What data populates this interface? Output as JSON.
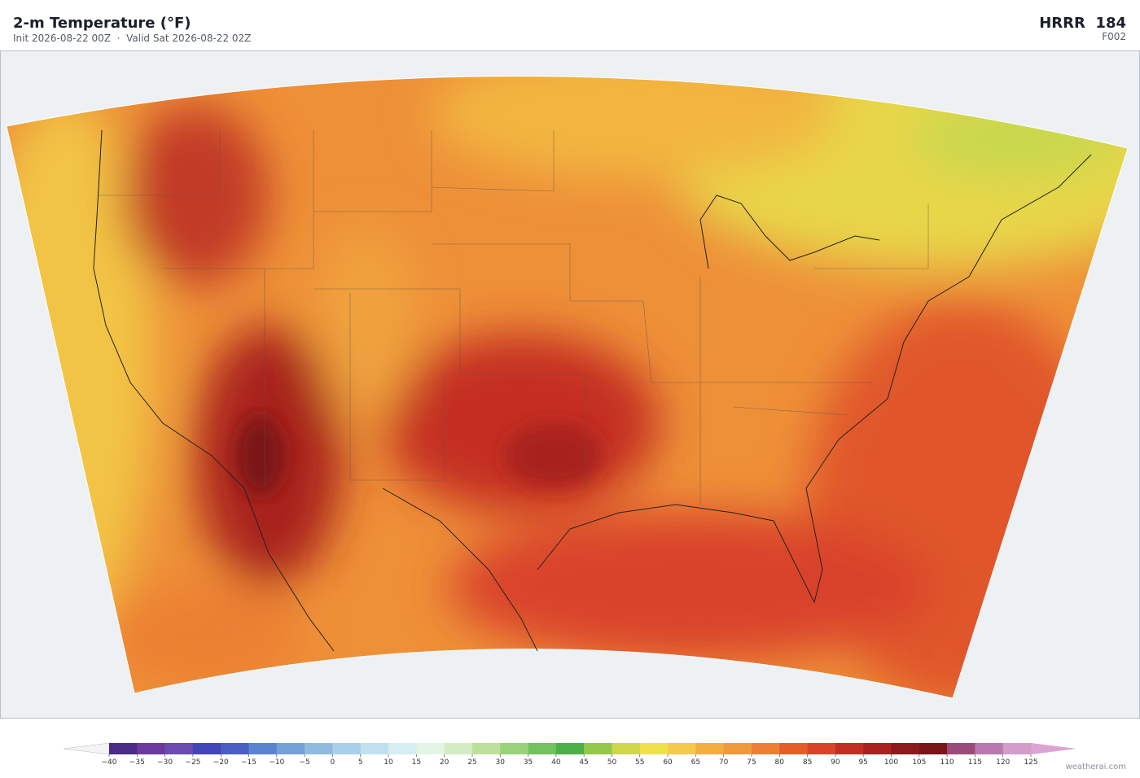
{
  "header": {
    "title": "2-m Temperature  (°F)",
    "subtitle": "Init 2026-08-22 00Z  ·  Valid Sat 2026-08-22 02Z",
    "model": "HRRR  184",
    "forecast_hour": "F002"
  },
  "colorbar": {
    "ticks": [
      {
        "value": -40,
        "label": "−40"
      },
      {
        "value": -35,
        "label": "−35"
      },
      {
        "value": -30,
        "label": "−30"
      },
      {
        "value": -25,
        "label": "−25"
      },
      {
        "value": -20,
        "label": "−20"
      },
      {
        "value": -15,
        "label": "−15"
      },
      {
        "value": -10,
        "label": "−10"
      },
      {
        "value": -5,
        "label": "−5"
      },
      0,
      5,
      10,
      15,
      20,
      25,
      30,
      35,
      40,
      45,
      50,
      55,
      60,
      65,
      70,
      75,
      80,
      85,
      90,
      95,
      100,
      105,
      110,
      115,
      120,
      125
    ],
    "colors": [
      "#4b2a8a",
      "#6a3a9e",
      "#6a4bb0",
      "#4346b8",
      "#4a5ec4",
      "#5b84d0",
      "#74a0d8",
      "#8fbbe0",
      "#a8d0e8",
      "#c0e0ef",
      "#d6eef2",
      "#e4f4e6",
      "#d4ecc4",
      "#bde09a",
      "#9ad27a",
      "#72c25e",
      "#4bb048",
      "#95c84a",
      "#cfd84a",
      "#efe14a",
      "#f5c949",
      "#f2ae3e",
      "#ef9a3a",
      "#ec7f33",
      "#e55e2a",
      "#d9432a",
      "#c22d24",
      "#a8221f",
      "#8c1a1c",
      "#7a1518",
      "#9c4a7a",
      "#ba78b0",
      "#d49cc8"
    ],
    "under_color": "#f3f4f6",
    "over_color": "#dca4d4"
  },
  "credit": "weatherai.com"
}
